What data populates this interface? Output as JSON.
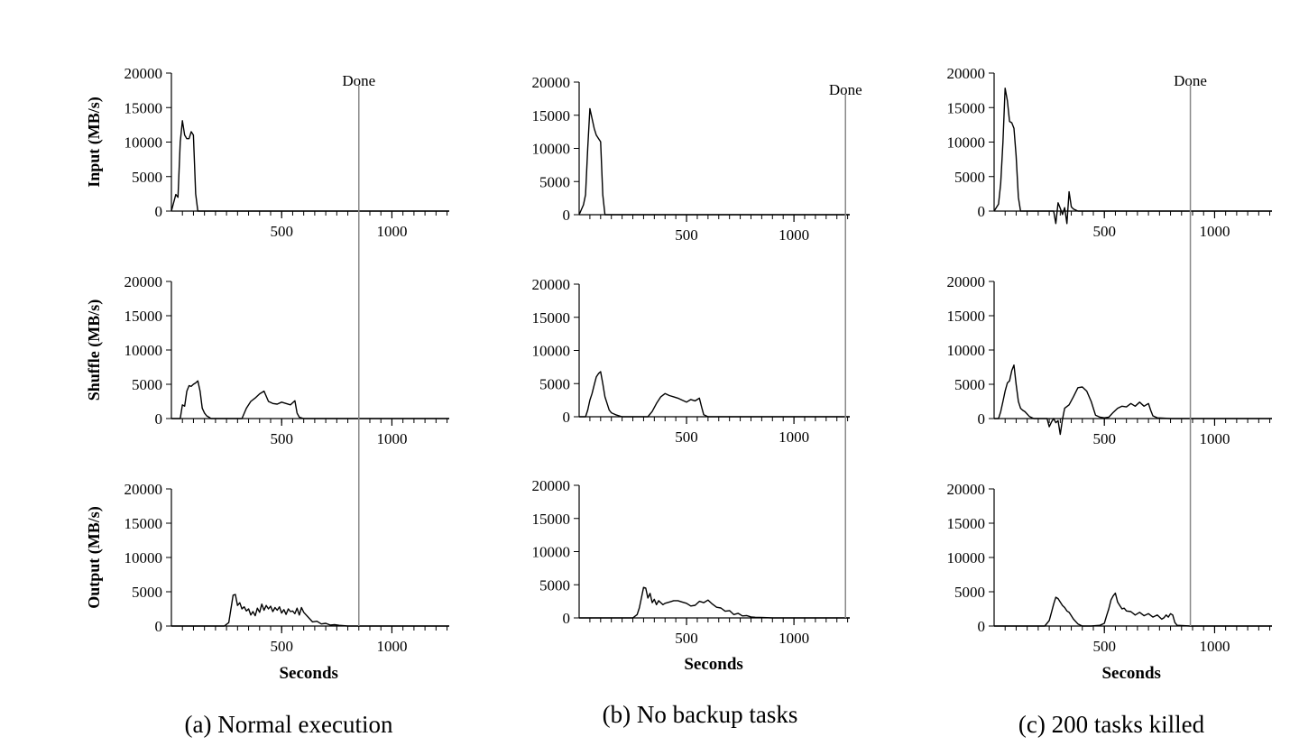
{
  "figure": {
    "y_labels": [
      "Input (MB/s)",
      "Shuffle (MB/s)",
      "Output (MB/s)"
    ],
    "x_label": "Seconds",
    "done_label": "Done"
  },
  "chart_data": [
    {
      "type": "line",
      "caption": "(a) Normal execution",
      "x_label": "Seconds",
      "x_ticks": [
        500,
        1000
      ],
      "y_ticks": [
        0,
        5000,
        10000,
        15000,
        20000
      ],
      "xlim": [
        0,
        1260
      ],
      "ylim": [
        0,
        20000
      ],
      "done_at": 850,
      "done_label": "Done",
      "panels": [
        {
          "name": "Input (MB/s)",
          "x": [
            0,
            20,
            30,
            40,
            50,
            60,
            70,
            80,
            90,
            100,
            110,
            120,
            130,
            140,
            160,
            200,
            400,
            850,
            1260
          ],
          "y": [
            0,
            2400,
            2000,
            10000,
            13100,
            11000,
            10500,
            10500,
            11500,
            11000,
            2500,
            0,
            0,
            0,
            0,
            0,
            0,
            0,
            0
          ]
        },
        {
          "name": "Shuffle (MB/s)",
          "x": [
            0,
            40,
            50,
            60,
            70,
            80,
            90,
            100,
            110,
            120,
            130,
            140,
            150,
            160,
            170,
            180,
            200,
            320,
            340,
            360,
            380,
            400,
            420,
            440,
            460,
            480,
            500,
            520,
            540,
            560,
            570,
            580,
            600,
            850,
            1260
          ],
          "y": [
            0,
            0,
            2000,
            1800,
            4000,
            4800,
            4700,
            5000,
            5200,
            5500,
            4000,
            1500,
            800,
            400,
            200,
            0,
            0,
            0,
            1500,
            2500,
            3000,
            3600,
            4000,
            2500,
            2200,
            2100,
            2400,
            2200,
            2000,
            2600,
            800,
            200,
            0,
            0,
            0
          ]
        },
        {
          "name": "Output (MB/s)",
          "x": [
            0,
            240,
            260,
            270,
            280,
            290,
            300,
            310,
            320,
            330,
            340,
            350,
            360,
            370,
            380,
            390,
            400,
            410,
            420,
            430,
            440,
            450,
            460,
            470,
            480,
            490,
            500,
            510,
            520,
            530,
            540,
            550,
            560,
            570,
            580,
            590,
            600,
            620,
            640,
            660,
            680,
            700,
            720,
            740,
            760,
            780,
            800,
            850,
            1260
          ],
          "y": [
            0,
            0,
            500,
            2500,
            4500,
            4600,
            3000,
            3400,
            2500,
            2800,
            2200,
            2500,
            1600,
            2100,
            1500,
            2600,
            2000,
            3200,
            2300,
            3000,
            2500,
            2900,
            2100,
            2700,
            2300,
            2800,
            1900,
            2400,
            1700,
            2500,
            2100,
            2200,
            1800,
            2600,
            1600,
            2700,
            2000,
            1300,
            600,
            700,
            300,
            400,
            150,
            200,
            100,
            50,
            0,
            0,
            0
          ]
        }
      ]
    },
    {
      "type": "line",
      "caption": "(b) No backup tasks",
      "x_label": "Seconds",
      "x_ticks": [
        500,
        1000
      ],
      "y_ticks": [
        0,
        5000,
        10000,
        15000,
        20000
      ],
      "xlim": [
        0,
        1260
      ],
      "ylim": [
        0,
        20000
      ],
      "done_at": 1240,
      "done_label": "Done",
      "panels": [
        {
          "name": "Input (MB/s)",
          "x": [
            0,
            20,
            30,
            40,
            50,
            60,
            70,
            80,
            90,
            100,
            110,
            120,
            140,
            400,
            1240,
            1260
          ],
          "y": [
            0,
            1500,
            3000,
            10000,
            16000,
            14500,
            13000,
            12000,
            11500,
            11000,
            3000,
            0,
            0,
            0,
            0,
            0
          ]
        },
        {
          "name": "Shuffle (MB/s)",
          "x": [
            0,
            30,
            40,
            50,
            60,
            70,
            80,
            90,
            100,
            110,
            120,
            130,
            140,
            150,
            170,
            200,
            320,
            340,
            360,
            380,
            400,
            420,
            440,
            460,
            480,
            500,
            520,
            540,
            560,
            570,
            580,
            600,
            1260
          ],
          "y": [
            0,
            0,
            1000,
            2500,
            3500,
            4800,
            6000,
            6500,
            6800,
            5000,
            3000,
            2000,
            1000,
            600,
            300,
            0,
            0,
            800,
            2000,
            3000,
            3500,
            3200,
            3000,
            2800,
            2500,
            2200,
            2600,
            2400,
            2800,
            1500,
            300,
            0,
            0
          ]
        },
        {
          "name": "Output (MB/s)",
          "x": [
            0,
            250,
            270,
            280,
            290,
            300,
            310,
            320,
            330,
            340,
            350,
            360,
            370,
            380,
            390,
            400,
            420,
            440,
            460,
            480,
            500,
            520,
            540,
            560,
            580,
            600,
            620,
            640,
            660,
            680,
            700,
            720,
            740,
            760,
            780,
            800,
            820,
            860,
            900,
            1260
          ],
          "y": [
            0,
            0,
            500,
            1500,
            3000,
            4600,
            4500,
            3000,
            3700,
            2300,
            2800,
            2000,
            2600,
            2300,
            2000,
            2200,
            2400,
            2600,
            2600,
            2400,
            2200,
            1800,
            1900,
            2500,
            2300,
            2700,
            2100,
            1600,
            1500,
            1000,
            1100,
            500,
            700,
            300,
            350,
            150,
            100,
            50,
            0,
            0
          ]
        }
      ]
    },
    {
      "type": "line",
      "caption": "(c) 200 tasks killed",
      "x_label": "Seconds",
      "x_ticks": [
        500,
        1000
      ],
      "y_ticks": [
        0,
        5000,
        10000,
        15000,
        20000
      ],
      "xlim": [
        0,
        1260
      ],
      "ylim": [
        0,
        20000
      ],
      "done_at": 890,
      "done_label": "Done",
      "panels": [
        {
          "name": "Input (MB/s)",
          "x": [
            0,
            20,
            30,
            40,
            50,
            60,
            70,
            80,
            90,
            100,
            110,
            120,
            140,
            260,
            270,
            280,
            290,
            300,
            310,
            320,
            330,
            340,
            350,
            360,
            380,
            400,
            890,
            1260
          ],
          "y": [
            0,
            1000,
            4000,
            10000,
            17800,
            16000,
            13000,
            12800,
            12000,
            8000,
            2000,
            0,
            0,
            0,
            0,
            -1800,
            1200,
            400,
            -500,
            500,
            -1800,
            2800,
            600,
            300,
            0,
            0,
            0,
            0
          ]
        },
        {
          "name": "Shuffle (MB/s)",
          "x": [
            0,
            20,
            30,
            40,
            50,
            60,
            70,
            80,
            90,
            100,
            110,
            120,
            130,
            140,
            160,
            180,
            200,
            220,
            240,
            250,
            260,
            270,
            280,
            290,
            300,
            310,
            320,
            340,
            360,
            380,
            400,
            420,
            440,
            460,
            480,
            500,
            520,
            540,
            560,
            580,
            600,
            620,
            640,
            660,
            680,
            700,
            710,
            720,
            740,
            800,
            890,
            1260
          ],
          "y": [
            0,
            0,
            1000,
            2500,
            4000,
            5200,
            5500,
            7000,
            7800,
            5000,
            2500,
            1500,
            1200,
            1000,
            300,
            0,
            0,
            0,
            0,
            -1200,
            -500,
            0,
            -600,
            -300,
            -2300,
            -100,
            1500,
            2000,
            3200,
            4500,
            4600,
            4000,
            2500,
            500,
            200,
            100,
            200,
            900,
            1500,
            1800,
            1700,
            2200,
            1800,
            2400,
            1800,
            2200,
            1200,
            400,
            100,
            0,
            0,
            0
          ]
        },
        {
          "name": "Output (MB/s)",
          "x": [
            0,
            230,
            250,
            260,
            270,
            280,
            290,
            300,
            310,
            320,
            330,
            340,
            350,
            360,
            380,
            400,
            440,
            480,
            500,
            510,
            520,
            530,
            540,
            550,
            560,
            570,
            580,
            590,
            600,
            620,
            640,
            660,
            680,
            700,
            720,
            740,
            760,
            770,
            780,
            790,
            800,
            810,
            820,
            830,
            890,
            1260
          ],
          "y": [
            0,
            0,
            800,
            2000,
            3200,
            4200,
            4000,
            3500,
            3000,
            2700,
            2200,
            2000,
            1500,
            1000,
            300,
            0,
            0,
            100,
            400,
            1500,
            2500,
            3800,
            4400,
            4800,
            3500,
            3000,
            2500,
            2600,
            2200,
            2100,
            1600,
            2000,
            1500,
            1800,
            1300,
            1600,
            1000,
            1200,
            1600,
            1300,
            1800,
            1600,
            500,
            100,
            0,
            0
          ]
        }
      ]
    }
  ]
}
